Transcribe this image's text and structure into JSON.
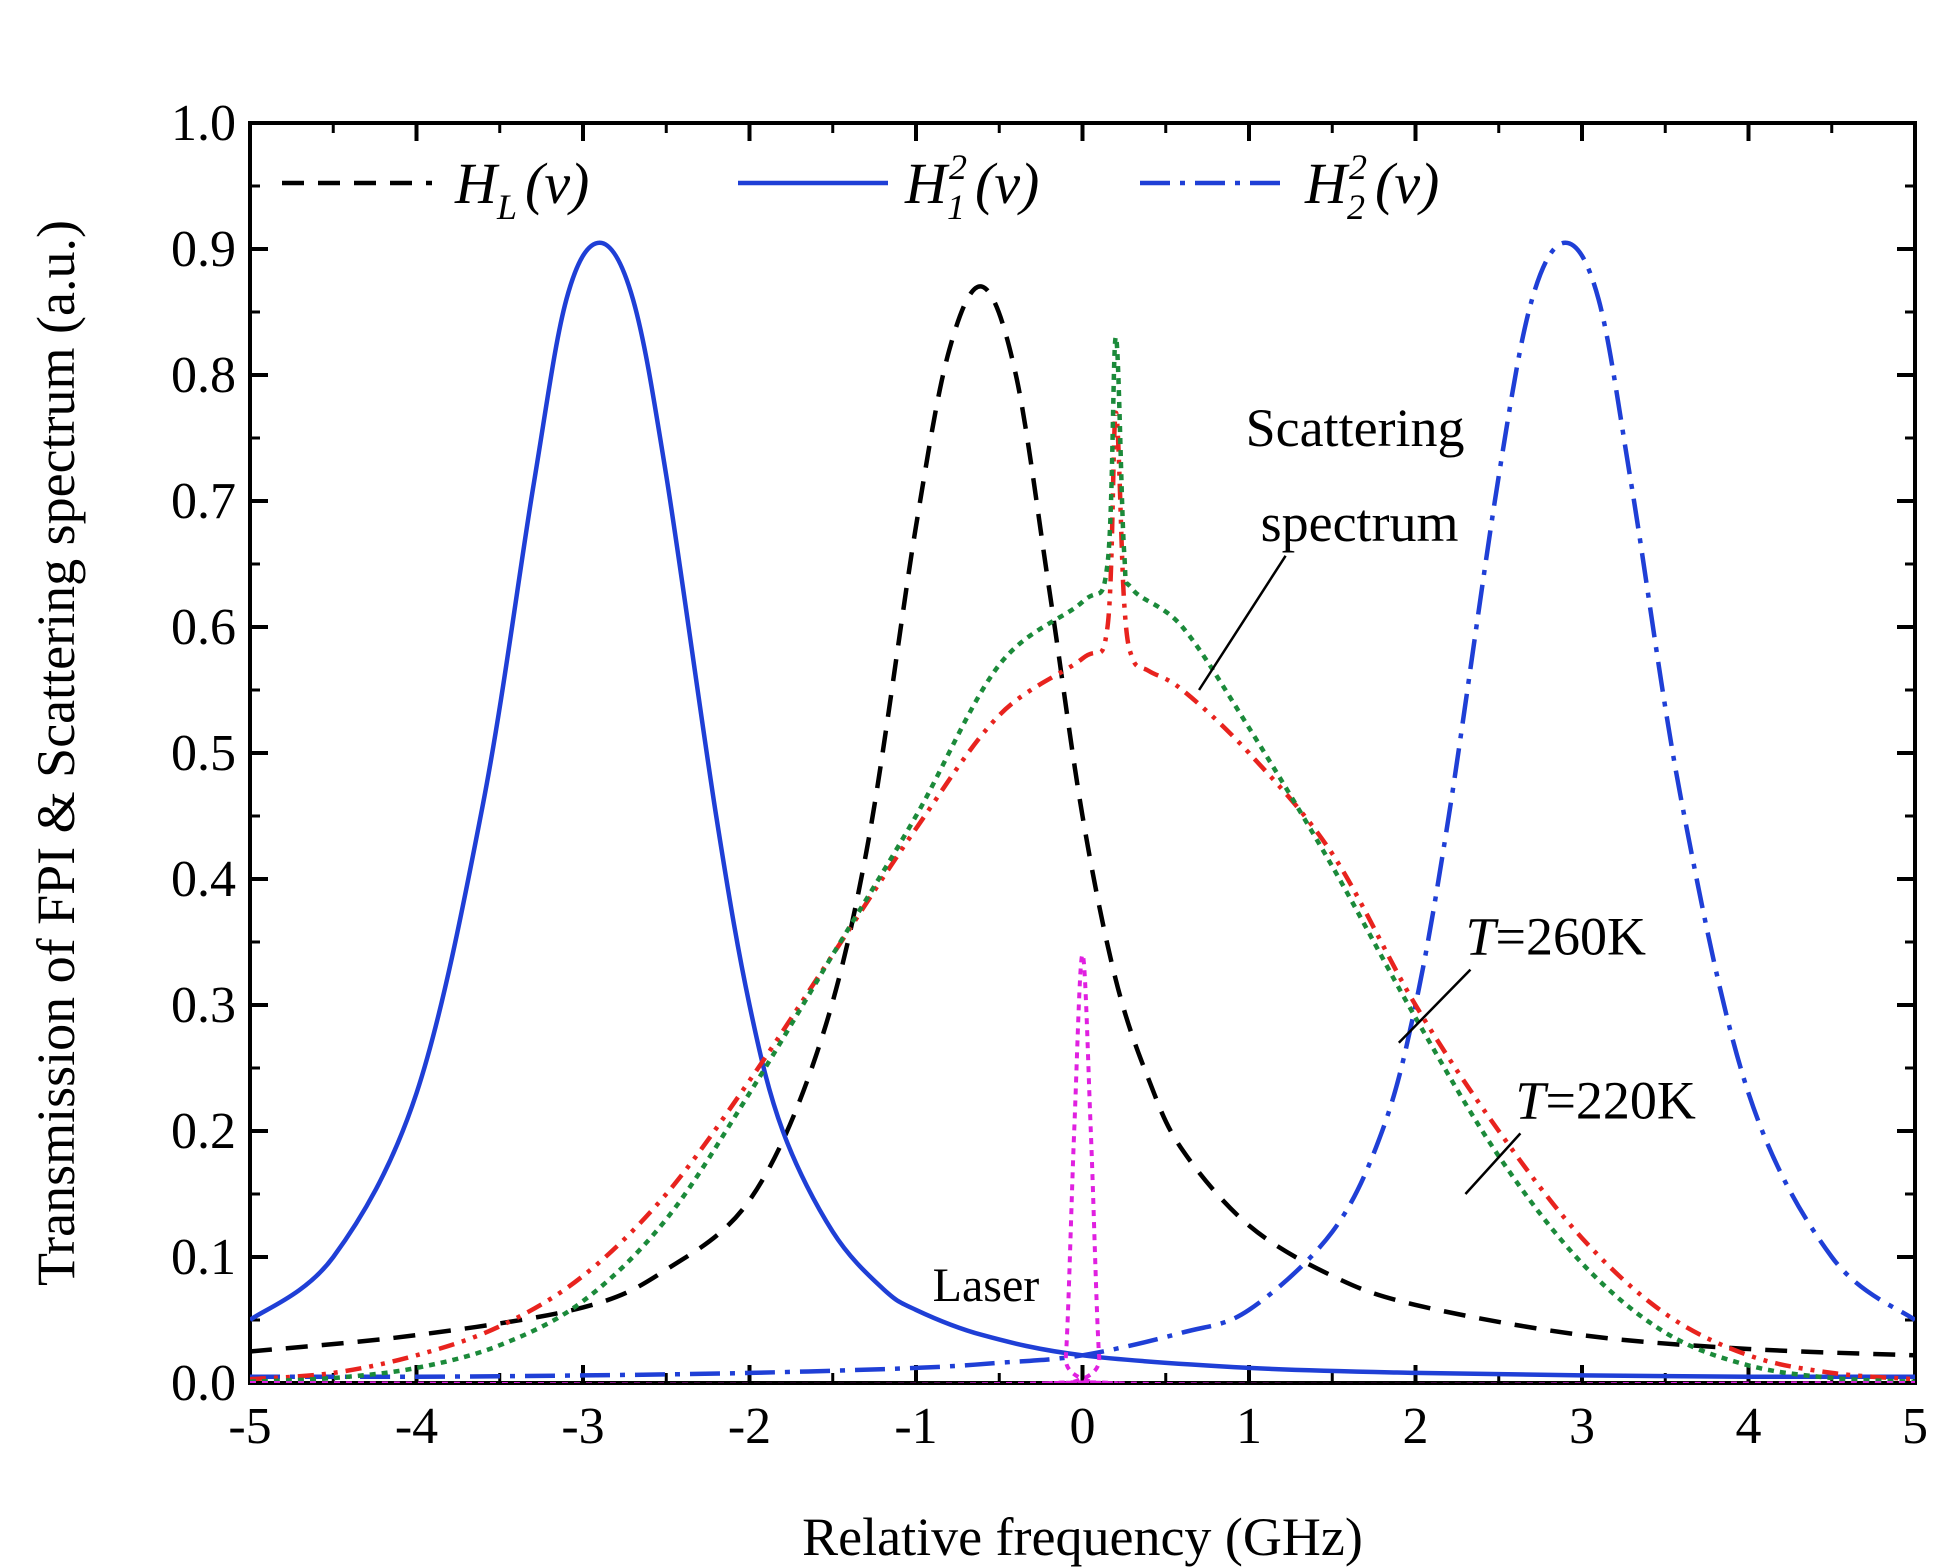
{
  "chart_data": {
    "type": "line",
    "xlabel": "Relative frequency (GHz)",
    "ylabel": "Transmission of FPI & Scattering spectrum (a.u.)",
    "xlim": [
      -5,
      5
    ],
    "ylim": [
      0.0,
      1.0
    ],
    "x_ticks": [
      "-5",
      "-4",
      "-3",
      "-2",
      "-1",
      "0",
      "1",
      "2",
      "3",
      "4",
      "5"
    ],
    "y_ticks": [
      "0.0",
      "0.1",
      "0.2",
      "0.3",
      "0.4",
      "0.5",
      "0.6",
      "0.7",
      "0.8",
      "0.9",
      "1.0"
    ],
    "legend": {
      "placement": "top",
      "items": [
        {
          "base": "H",
          "sub": "L",
          "sup": "",
          "arg": "(ν)",
          "color": "#000000",
          "dash": "dashed"
        },
        {
          "base": "H",
          "sub": "1",
          "sup": "2",
          "arg": "(ν)",
          "color": "#1f3fd6",
          "dash": "solid"
        },
        {
          "base": "H",
          "sub": "2",
          "sup": "2",
          "arg": "(ν)",
          "color": "#1f3fd6",
          "dash": "dashdot"
        }
      ]
    },
    "series": [
      {
        "key": "HL",
        "color": "#000000",
        "dash": "dashed",
        "x": [
          -5,
          -4,
          -3,
          -2.5,
          -2,
          -1.6,
          -1.3,
          -1.0,
          -0.8,
          -0.6,
          -0.4,
          -0.2,
          0.0,
          0.2,
          0.4,
          0.6,
          1.0,
          1.5,
          2.0,
          3.0,
          4.0,
          5.0
        ],
        "y": [
          0.025,
          0.038,
          0.06,
          0.09,
          0.145,
          0.26,
          0.42,
          0.68,
          0.82,
          0.87,
          0.8,
          0.63,
          0.45,
          0.32,
          0.24,
          0.185,
          0.125,
          0.085,
          0.062,
          0.038,
          0.027,
          0.022
        ]
      },
      {
        "key": "H1sq",
        "color": "#1f3fd6",
        "dash": "solid",
        "x": [
          -5,
          -4.5,
          -4,
          -3.6,
          -3.3,
          -3.1,
          -2.9,
          -2.7,
          -2.5,
          -2.2,
          -2.0,
          -1.8,
          -1.5,
          -1.2,
          -1.0,
          -0.6,
          0.0,
          1.0,
          2.0,
          3.0,
          4.0,
          5.0
        ],
        "y": [
          0.05,
          0.1,
          0.23,
          0.46,
          0.71,
          0.86,
          0.905,
          0.86,
          0.72,
          0.45,
          0.3,
          0.2,
          0.12,
          0.075,
          0.058,
          0.038,
          0.022,
          0.012,
          0.008,
          0.006,
          0.005,
          0.005
        ]
      },
      {
        "key": "H2sq",
        "color": "#1f3fd6",
        "dash": "dashdot",
        "x": [
          -5,
          -4,
          -3,
          -2,
          -1.0,
          -0.5,
          0.0,
          0.6,
          1.0,
          1.5,
          1.8,
          2.0,
          2.2,
          2.5,
          2.7,
          2.9,
          3.1,
          3.3,
          3.6,
          4.0,
          4.5,
          5.0
        ],
        "y": [
          0.005,
          0.005,
          0.006,
          0.008,
          0.012,
          0.016,
          0.022,
          0.04,
          0.058,
          0.12,
          0.2,
          0.3,
          0.45,
          0.72,
          0.86,
          0.905,
          0.86,
          0.71,
          0.46,
          0.23,
          0.1,
          0.05
        ]
      },
      {
        "key": "scatter_260K",
        "color": "#e8231e",
        "dash": "dashdotdot",
        "x": [
          -5,
          -4.5,
          -4,
          -3.5,
          -3,
          -2.5,
          -2,
          -1.5,
          -1.0,
          -0.5,
          0.0,
          0.15,
          0.2,
          0.25,
          0.3,
          0.4,
          0.6,
          1.0,
          1.5,
          2.0,
          2.5,
          3.0,
          3.5,
          4.0,
          4.5,
          5.0
        ],
        "y": [
          0.003,
          0.008,
          0.022,
          0.045,
          0.085,
          0.15,
          0.24,
          0.34,
          0.44,
          0.53,
          0.575,
          0.6,
          0.77,
          0.62,
          0.575,
          0.565,
          0.55,
          0.5,
          0.42,
          0.3,
          0.2,
          0.115,
          0.055,
          0.022,
          0.008,
          0.003
        ]
      },
      {
        "key": "scatter_220K",
        "color": "#1b8a3a",
        "dash": "dotted",
        "x": [
          -5,
          -4.5,
          -4,
          -3.5,
          -3,
          -2.5,
          -2,
          -1.5,
          -1.0,
          -0.5,
          0.0,
          0.15,
          0.2,
          0.25,
          0.3,
          0.6,
          1.0,
          1.5,
          2.0,
          2.5,
          3.0,
          3.5,
          4.0,
          4.5,
          5.0
        ],
        "y": [
          0.001,
          0.004,
          0.012,
          0.03,
          0.065,
          0.13,
          0.23,
          0.34,
          0.45,
          0.57,
          0.62,
          0.65,
          0.83,
          0.66,
          0.63,
          0.6,
          0.52,
          0.41,
          0.29,
          0.18,
          0.095,
          0.04,
          0.014,
          0.004,
          0.001
        ]
      },
      {
        "key": "laser",
        "color": "#e020e0",
        "dash": "dotted",
        "x": [
          -5,
          -0.15,
          -0.1,
          -0.05,
          0.0,
          0.05,
          0.1,
          0.15,
          5
        ],
        "y": [
          0.0,
          0.0,
          0.02,
          0.2,
          0.34,
          0.2,
          0.02,
          0.0,
          0.0
        ]
      }
    ],
    "annotations": [
      {
        "text_lines": [
          "Scattering",
          "spectrum"
        ],
        "x": 1.4,
        "y": 0.72,
        "pointer_to": [
          0.7,
          0.55
        ],
        "style": "normal"
      },
      {
        "prefix": "T",
        "text": "=260K",
        "x": 2.3,
        "y": 0.34,
        "pointer_to": [
          1.9,
          0.27
        ]
      },
      {
        "prefix": "T",
        "text": "=220K",
        "x": 2.6,
        "y": 0.21,
        "pointer_to": [
          2.3,
          0.15
        ]
      },
      {
        "text": "Laser",
        "x": -0.9,
        "y": 0.065
      }
    ]
  }
}
